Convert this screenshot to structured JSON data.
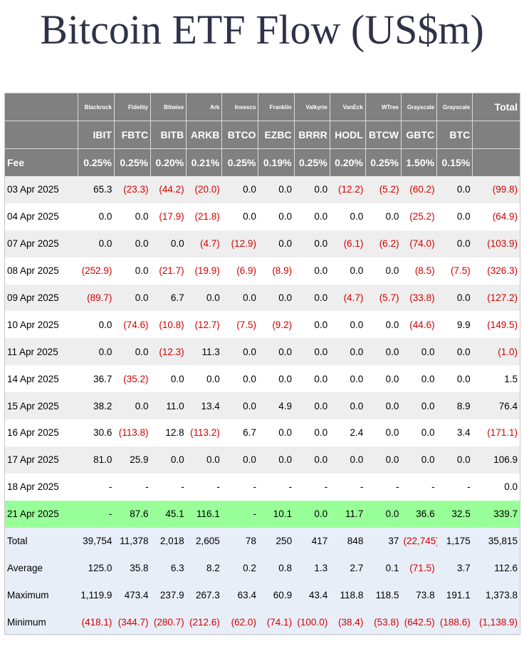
{
  "title": "Bitcoin ETF Flow (US$m)",
  "colors": {
    "header_bg": "#808080",
    "highlight_bg": "#99ff99",
    "negative_text": "#d40000",
    "summary_bg": "#e8eef8"
  },
  "header": {
    "issuers": [
      "Blackrock",
      "Fidelity",
      "Bitwise",
      "Ark",
      "Invesco",
      "Franklin",
      "Valkyrie",
      "VanEck",
      "WTree",
      "Grayscale",
      "Grayscale"
    ],
    "total_label": "Total",
    "tickers": [
      "IBIT",
      "FBTC",
      "BITB",
      "ARKB",
      "BTCO",
      "EZBC",
      "BRRR",
      "HODL",
      "BTCW",
      "GBTC",
      "BTC"
    ],
    "fee_label": "Fee",
    "fees": [
      "0.25%",
      "0.25%",
      "0.20%",
      "0.21%",
      "0.25%",
      "0.19%",
      "0.25%",
      "0.20%",
      "0.25%",
      "1.50%",
      "0.15%"
    ]
  },
  "rows": [
    {
      "date": "03 Apr 2025",
      "cells": [
        "65.3",
        "(23.3)",
        "(44.2)",
        "(20.0)",
        "0.0",
        "0.0",
        "0.0",
        "(12.2)",
        "(5.2)",
        "(60.2)",
        "0.0",
        "(99.8)"
      ]
    },
    {
      "date": "04 Apr 2025",
      "cells": [
        "0.0",
        "0.0",
        "(17.9)",
        "(21.8)",
        "0.0",
        "0.0",
        "0.0",
        "0.0",
        "0.0",
        "(25.2)",
        "0.0",
        "(64.9)"
      ]
    },
    {
      "date": "07 Apr 2025",
      "cells": [
        "0.0",
        "0.0",
        "0.0",
        "(4.7)",
        "(12.9)",
        "0.0",
        "0.0",
        "(6.1)",
        "(6.2)",
        "(74.0)",
        "0.0",
        "(103.9)"
      ]
    },
    {
      "date": "08 Apr 2025",
      "cells": [
        "(252.9)",
        "0.0",
        "(21.7)",
        "(19.9)",
        "(6.9)",
        "(8.9)",
        "0.0",
        "0.0",
        "0.0",
        "(8.5)",
        "(7.5)",
        "(326.3)"
      ]
    },
    {
      "date": "09 Apr 2025",
      "cells": [
        "(89.7)",
        "0.0",
        "6.7",
        "0.0",
        "0.0",
        "0.0",
        "0.0",
        "(4.7)",
        "(5.7)",
        "(33.8)",
        "0.0",
        "(127.2)"
      ]
    },
    {
      "date": "10 Apr 2025",
      "cells": [
        "0.0",
        "(74.6)",
        "(10.8)",
        "(12.7)",
        "(7.5)",
        "(9.2)",
        "0.0",
        "0.0",
        "0.0",
        "(44.6)",
        "9.9",
        "(149.5)"
      ]
    },
    {
      "date": "11 Apr 2025",
      "cells": [
        "0.0",
        "0.0",
        "(12.3)",
        "11.3",
        "0.0",
        "0.0",
        "0.0",
        "0.0",
        "0.0",
        "0.0",
        "0.0",
        "(1.0)"
      ]
    },
    {
      "date": "14 Apr 2025",
      "cells": [
        "36.7",
        "(35.2)",
        "0.0",
        "0.0",
        "0.0",
        "0.0",
        "0.0",
        "0.0",
        "0.0",
        "0.0",
        "0.0",
        "1.5"
      ]
    },
    {
      "date": "15 Apr 2025",
      "cells": [
        "38.2",
        "0.0",
        "11.0",
        "13.4",
        "0.0",
        "4.9",
        "0.0",
        "0.0",
        "0.0",
        "0.0",
        "8.9",
        "76.4"
      ]
    },
    {
      "date": "16 Apr 2025",
      "cells": [
        "30.6",
        "(113.8)",
        "12.8",
        "(113.2)",
        "6.7",
        "0.0",
        "0.0",
        "2.4",
        "0.0",
        "0.0",
        "3.4",
        "(171.1)"
      ]
    },
    {
      "date": "17 Apr 2025",
      "cells": [
        "81.0",
        "25.9",
        "0.0",
        "0.0",
        "0.0",
        "0.0",
        "0.0",
        "0.0",
        "0.0",
        "0.0",
        "0.0",
        "106.9"
      ]
    },
    {
      "date": "18 Apr 2025",
      "cells": [
        "-",
        "-",
        "-",
        "-",
        "-",
        "-",
        "-",
        "-",
        "-",
        "-",
        "-",
        "0.0"
      ]
    },
    {
      "date": "21 Apr 2025",
      "highlight": true,
      "cells": [
        "-",
        "87.6",
        "45.1",
        "116.1",
        "-",
        "10.1",
        "0.0",
        "11.7",
        "0.0",
        "36.6",
        "32.5",
        "339.7"
      ]
    }
  ],
  "summary": [
    {
      "label": "Total",
      "cells": [
        "39,754",
        "11,378",
        "2,018",
        "2,605",
        "78",
        "250",
        "417",
        "848",
        "37",
        "(22,745)",
        "1,175",
        "35,815"
      ]
    },
    {
      "label": "Average",
      "cells": [
        "125.0",
        "35.8",
        "6.3",
        "8.2",
        "0.2",
        "0.8",
        "1.3",
        "2.7",
        "0.1",
        "(71.5)",
        "3.7",
        "112.6"
      ]
    },
    {
      "label": "Maximum",
      "cells": [
        "1,119.9",
        "473.4",
        "237.9",
        "267.3",
        "63.4",
        "60.9",
        "43.4",
        "118.8",
        "118.5",
        "73.8",
        "191.1",
        "1,373.8"
      ]
    },
    {
      "label": "Minimum",
      "cells": [
        "(418.1)",
        "(344.7)",
        "(280.7)",
        "(212.6)",
        "(62.0)",
        "(74.1)",
        "(100.0)",
        "(38.4)",
        "(53.8)",
        "(642.5)",
        "(188.6)",
        "(1,138.9)"
      ]
    }
  ]
}
